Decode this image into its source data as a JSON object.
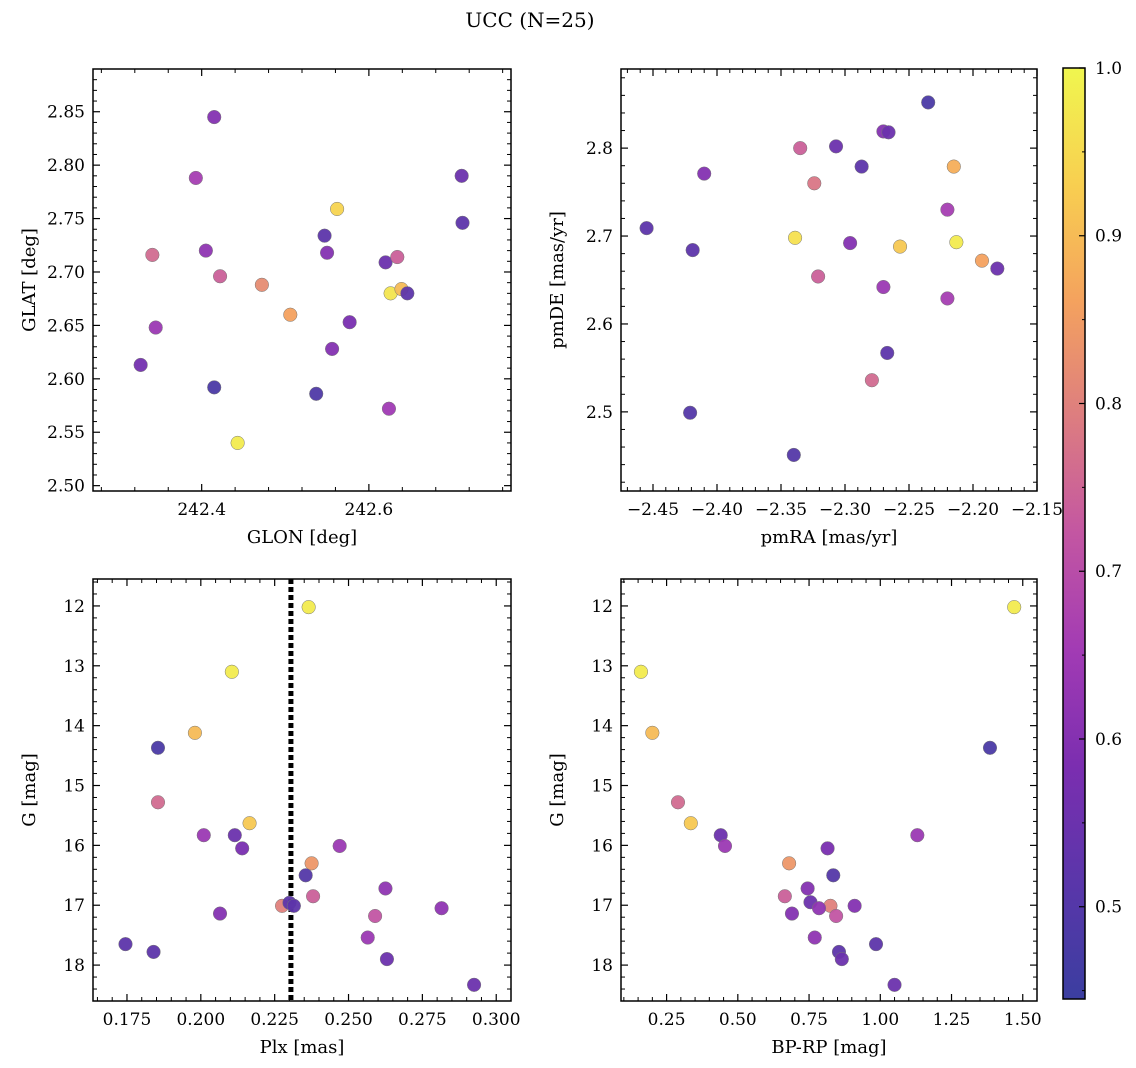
{
  "figure": {
    "title": "UCC (N=25)"
  },
  "colorbar": {
    "min": 0.445,
    "max": 1.0,
    "ticks": [
      0.5,
      0.6,
      0.7,
      0.8,
      0.9,
      1.0
    ],
    "tick_labels": [
      "0.5",
      "0.6",
      "0.7",
      "0.8",
      "0.9",
      "1.0"
    ],
    "colormap": "plasma",
    "stops": [
      "#3b3ea0",
      "#5a36aa",
      "#7b2eb0",
      "#a23bb4",
      "#c356a2",
      "#dd7d80",
      "#f4a25e",
      "#f8cf50",
      "#f0f64f"
    ]
  },
  "chart_data": [
    {
      "type": "scatter",
      "xlabel": "GLON [deg]",
      "ylabel": "GLAT [deg]",
      "xlim": [
        242.27,
        242.77
      ],
      "ylim": [
        2.495,
        2.89
      ],
      "xticks": [
        242.4,
        242.6
      ],
      "xtick_labels": [
        "242.4",
        "242.6"
      ],
      "yticks": [
        2.5,
        2.55,
        2.6,
        2.65,
        2.7,
        2.75,
        2.8,
        2.85
      ],
      "ytick_labels": [
        "2.50",
        "2.55",
        "2.60",
        "2.65",
        "2.70",
        "2.75",
        "2.80",
        "2.85"
      ],
      "points": [
        {
          "x": 242.415,
          "y": 2.845,
          "c": 0.6
        },
        {
          "x": 242.393,
          "y": 2.788,
          "c": 0.66
        },
        {
          "x": 242.711,
          "y": 2.79,
          "c": 0.55
        },
        {
          "x": 242.562,
          "y": 2.759,
          "c": 0.94
        },
        {
          "x": 242.712,
          "y": 2.746,
          "c": 0.52
        },
        {
          "x": 242.547,
          "y": 2.734,
          "c": 0.52
        },
        {
          "x": 242.341,
          "y": 2.716,
          "c": 0.76
        },
        {
          "x": 242.405,
          "y": 2.72,
          "c": 0.62
        },
        {
          "x": 242.55,
          "y": 2.718,
          "c": 0.6
        },
        {
          "x": 242.62,
          "y": 2.709,
          "c": 0.55
        },
        {
          "x": 242.634,
          "y": 2.714,
          "c": 0.74
        },
        {
          "x": 242.422,
          "y": 2.696,
          "c": 0.74
        },
        {
          "x": 242.472,
          "y": 2.688,
          "c": 0.82
        },
        {
          "x": 242.626,
          "y": 2.68,
          "c": 0.97
        },
        {
          "x": 242.639,
          "y": 2.684,
          "c": 0.9
        },
        {
          "x": 242.646,
          "y": 2.68,
          "c": 0.52
        },
        {
          "x": 242.506,
          "y": 2.66,
          "c": 0.86
        },
        {
          "x": 242.577,
          "y": 2.653,
          "c": 0.58
        },
        {
          "x": 242.345,
          "y": 2.648,
          "c": 0.64
        },
        {
          "x": 242.556,
          "y": 2.628,
          "c": 0.6
        },
        {
          "x": 242.327,
          "y": 2.613,
          "c": 0.57
        },
        {
          "x": 242.415,
          "y": 2.592,
          "c": 0.48
        },
        {
          "x": 242.537,
          "y": 2.586,
          "c": 0.49
        },
        {
          "x": 242.624,
          "y": 2.572,
          "c": 0.65
        },
        {
          "x": 242.443,
          "y": 2.54,
          "c": 0.98
        }
      ]
    },
    {
      "type": "scatter",
      "xlabel": "pmRA [mas/yr]",
      "ylabel": "pmDE [mas/yr]",
      "xlim": [
        -2.475,
        -2.15
      ],
      "ylim": [
        2.41,
        2.89
      ],
      "xticks": [
        -2.45,
        -2.4,
        -2.35,
        -2.3,
        -2.25,
        -2.2,
        -2.15
      ],
      "xtick_labels": [
        "−2.45",
        "−2.40",
        "−2.35",
        "−2.30",
        "−2.25",
        "−2.20",
        "−2.15"
      ],
      "yticks": [
        2.5,
        2.6,
        2.7,
        2.8
      ],
      "ytick_labels": [
        "2.5",
        "2.6",
        "2.7",
        "2.8"
      ],
      "points": [
        {
          "x": -2.235,
          "y": 2.852,
          "c": 0.48
        },
        {
          "x": -2.27,
          "y": 2.819,
          "c": 0.6
        },
        {
          "x": -2.266,
          "y": 2.818,
          "c": 0.55
        },
        {
          "x": -2.307,
          "y": 2.802,
          "c": 0.55
        },
        {
          "x": -2.335,
          "y": 2.8,
          "c": 0.74
        },
        {
          "x": -2.287,
          "y": 2.779,
          "c": 0.52
        },
        {
          "x": -2.215,
          "y": 2.779,
          "c": 0.88
        },
        {
          "x": -2.41,
          "y": 2.771,
          "c": 0.6
        },
        {
          "x": -2.324,
          "y": 2.76,
          "c": 0.78
        },
        {
          "x": -2.22,
          "y": 2.73,
          "c": 0.66
        },
        {
          "x": -2.455,
          "y": 2.709,
          "c": 0.52
        },
        {
          "x": -2.339,
          "y": 2.698,
          "c": 0.96
        },
        {
          "x": -2.213,
          "y": 2.693,
          "c": 0.98
        },
        {
          "x": -2.296,
          "y": 2.692,
          "c": 0.6
        },
        {
          "x": -2.257,
          "y": 2.688,
          "c": 0.92
        },
        {
          "x": -2.419,
          "y": 2.684,
          "c": 0.52
        },
        {
          "x": -2.193,
          "y": 2.672,
          "c": 0.86
        },
        {
          "x": -2.181,
          "y": 2.663,
          "c": 0.55
        },
        {
          "x": -2.321,
          "y": 2.654,
          "c": 0.74
        },
        {
          "x": -2.27,
          "y": 2.642,
          "c": 0.64
        },
        {
          "x": -2.22,
          "y": 2.629,
          "c": 0.66
        },
        {
          "x": -2.267,
          "y": 2.567,
          "c": 0.52
        },
        {
          "x": -2.279,
          "y": 2.536,
          "c": 0.76
        },
        {
          "x": -2.421,
          "y": 2.499,
          "c": 0.5
        },
        {
          "x": -2.34,
          "y": 2.451,
          "c": 0.5
        }
      ]
    },
    {
      "type": "scatter",
      "xlabel": "Plx [mas]",
      "ylabel": "G [mag]",
      "xlim": [
        0.1635,
        0.305
      ],
      "ylim": [
        18.6,
        11.55
      ],
      "xticks": [
        0.175,
        0.2,
        0.225,
        0.25,
        0.275,
        0.3
      ],
      "xtick_labels": [
        "0.175",
        "0.200",
        "0.225",
        "0.250",
        "0.275",
        "0.300"
      ],
      "yticks": [
        12,
        13,
        14,
        15,
        16,
        17,
        18
      ],
      "ytick_labels": [
        "12",
        "13",
        "14",
        "15",
        "16",
        "17",
        "18"
      ],
      "vline": 0.2305,
      "points": [
        {
          "x": 0.2365,
          "y": 12.02,
          "c": 0.98
        },
        {
          "x": 0.2105,
          "y": 13.1,
          "c": 0.98
        },
        {
          "x": 0.198,
          "y": 14.12,
          "c": 0.9
        },
        {
          "x": 0.1855,
          "y": 14.37,
          "c": 0.48
        },
        {
          "x": 0.1855,
          "y": 15.28,
          "c": 0.76
        },
        {
          "x": 0.2165,
          "y": 15.63,
          "c": 0.92
        },
        {
          "x": 0.201,
          "y": 15.83,
          "c": 0.64
        },
        {
          "x": 0.2115,
          "y": 15.83,
          "c": 0.55
        },
        {
          "x": 0.214,
          "y": 16.05,
          "c": 0.58
        },
        {
          "x": 0.247,
          "y": 16.01,
          "c": 0.64
        },
        {
          "x": 0.2375,
          "y": 16.3,
          "c": 0.84
        },
        {
          "x": 0.2355,
          "y": 16.5,
          "c": 0.5
        },
        {
          "x": 0.2625,
          "y": 16.72,
          "c": 0.62
        },
        {
          "x": 0.238,
          "y": 16.85,
          "c": 0.74
        },
        {
          "x": 0.2275,
          "y": 17.01,
          "c": 0.8
        },
        {
          "x": 0.23,
          "y": 16.96,
          "c": 0.52
        },
        {
          "x": 0.2315,
          "y": 17.01,
          "c": 0.52
        },
        {
          "x": 0.2815,
          "y": 17.05,
          "c": 0.62
        },
        {
          "x": 0.2065,
          "y": 17.14,
          "c": 0.6
        },
        {
          "x": 0.259,
          "y": 17.18,
          "c": 0.72
        },
        {
          "x": 0.2565,
          "y": 17.54,
          "c": 0.64
        },
        {
          "x": 0.1745,
          "y": 17.65,
          "c": 0.52
        },
        {
          "x": 0.184,
          "y": 17.78,
          "c": 0.52
        },
        {
          "x": 0.263,
          "y": 17.9,
          "c": 0.55
        },
        {
          "x": 0.2925,
          "y": 18.33,
          "c": 0.55
        }
      ]
    },
    {
      "type": "scatter",
      "xlabel": "BP-RP [mag]",
      "ylabel": "G [mag]",
      "xlim": [
        0.09,
        1.55
      ],
      "ylim": [
        18.6,
        11.55
      ],
      "xticks": [
        0.25,
        0.5,
        0.75,
        1.0,
        1.25,
        1.5
      ],
      "xtick_labels": [
        "0.25",
        "0.50",
        "0.75",
        "1.00",
        "1.25",
        "1.50"
      ],
      "yticks": [
        12,
        13,
        14,
        15,
        16,
        17,
        18
      ],
      "ytick_labels": [
        "12",
        "13",
        "14",
        "15",
        "16",
        "17",
        "18"
      ],
      "points": [
        {
          "x": 1.47,
          "y": 12.02,
          "c": 0.98
        },
        {
          "x": 0.16,
          "y": 13.1,
          "c": 0.98
        },
        {
          "x": 0.2,
          "y": 14.12,
          "c": 0.9
        },
        {
          "x": 1.385,
          "y": 14.37,
          "c": 0.48
        },
        {
          "x": 0.29,
          "y": 15.28,
          "c": 0.76
        },
        {
          "x": 0.335,
          "y": 15.63,
          "c": 0.92
        },
        {
          "x": 0.44,
          "y": 15.83,
          "c": 0.55
        },
        {
          "x": 1.13,
          "y": 15.83,
          "c": 0.64
        },
        {
          "x": 0.455,
          "y": 16.01,
          "c": 0.64
        },
        {
          "x": 0.815,
          "y": 16.05,
          "c": 0.58
        },
        {
          "x": 0.68,
          "y": 16.3,
          "c": 0.84
        },
        {
          "x": 0.835,
          "y": 16.5,
          "c": 0.5
        },
        {
          "x": 0.745,
          "y": 16.72,
          "c": 0.6
        },
        {
          "x": 0.665,
          "y": 16.85,
          "c": 0.74
        },
        {
          "x": 0.755,
          "y": 16.95,
          "c": 0.55
        },
        {
          "x": 0.825,
          "y": 17.01,
          "c": 0.8
        },
        {
          "x": 0.91,
          "y": 17.01,
          "c": 0.6
        },
        {
          "x": 0.785,
          "y": 17.05,
          "c": 0.62
        },
        {
          "x": 0.69,
          "y": 17.14,
          "c": 0.6
        },
        {
          "x": 0.845,
          "y": 17.18,
          "c": 0.72
        },
        {
          "x": 0.77,
          "y": 17.54,
          "c": 0.62
        },
        {
          "x": 0.985,
          "y": 17.65,
          "c": 0.52
        },
        {
          "x": 0.855,
          "y": 17.78,
          "c": 0.52
        },
        {
          "x": 0.865,
          "y": 17.9,
          "c": 0.55
        },
        {
          "x": 1.05,
          "y": 18.33,
          "c": 0.55
        }
      ]
    }
  ]
}
